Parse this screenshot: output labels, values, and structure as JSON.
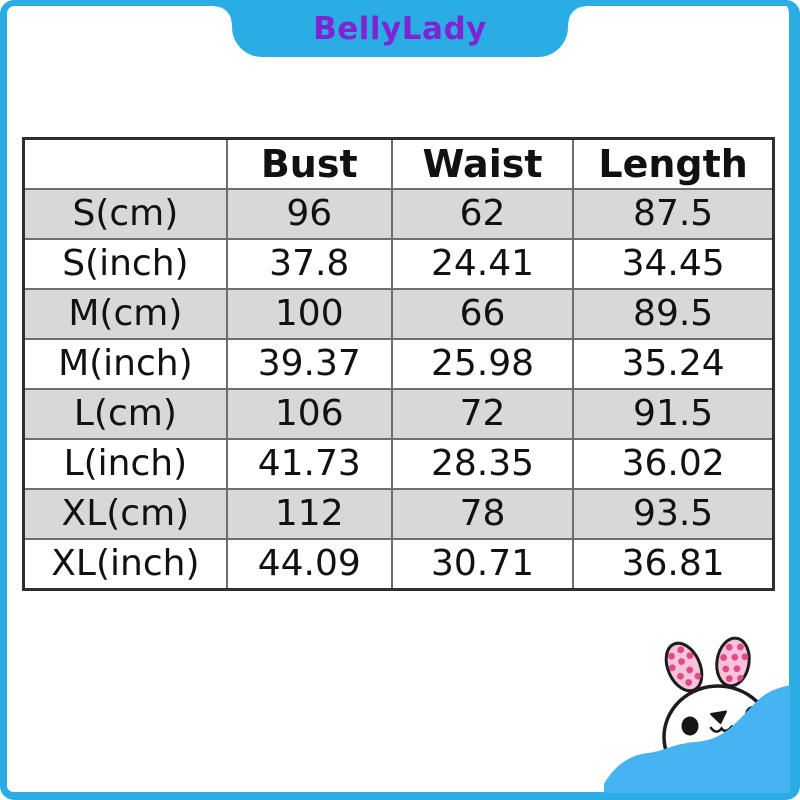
{
  "brand": {
    "name": "BellyLady"
  },
  "colors": {
    "frame_cyan": "#29ade4",
    "brand_purple": "#8123d3",
    "row_gray": "#d8d8d8",
    "cloud_blue": "#47b4f2",
    "ear_pink": "#f8c2d8",
    "dot_pink": "#e0488f",
    "cheek_pink": "#f596bc"
  },
  "chart_data": {
    "type": "table",
    "columns": [
      "",
      "Bust",
      "Waist",
      "Length"
    ],
    "rows": [
      {
        "label": "S(cm)",
        "values": [
          "96",
          "62",
          "87.5"
        ]
      },
      {
        "label": "S(inch)",
        "values": [
          "37.8",
          "24.41",
          "34.45"
        ]
      },
      {
        "label": "M(cm)",
        "values": [
          "100",
          "66",
          "89.5"
        ]
      },
      {
        "label": "M(inch)",
        "values": [
          "39.37",
          "25.98",
          "35.24"
        ]
      },
      {
        "label": "L(cm)",
        "values": [
          "106",
          "72",
          "91.5"
        ]
      },
      {
        "label": "L(inch)",
        "values": [
          "41.73",
          "28.35",
          "36.02"
        ]
      },
      {
        "label": "XL(cm)",
        "values": [
          "112",
          "78",
          "93.5"
        ]
      },
      {
        "label": "XL(inch)",
        "values": [
          "44.09",
          "30.71",
          "36.81"
        ]
      }
    ]
  }
}
